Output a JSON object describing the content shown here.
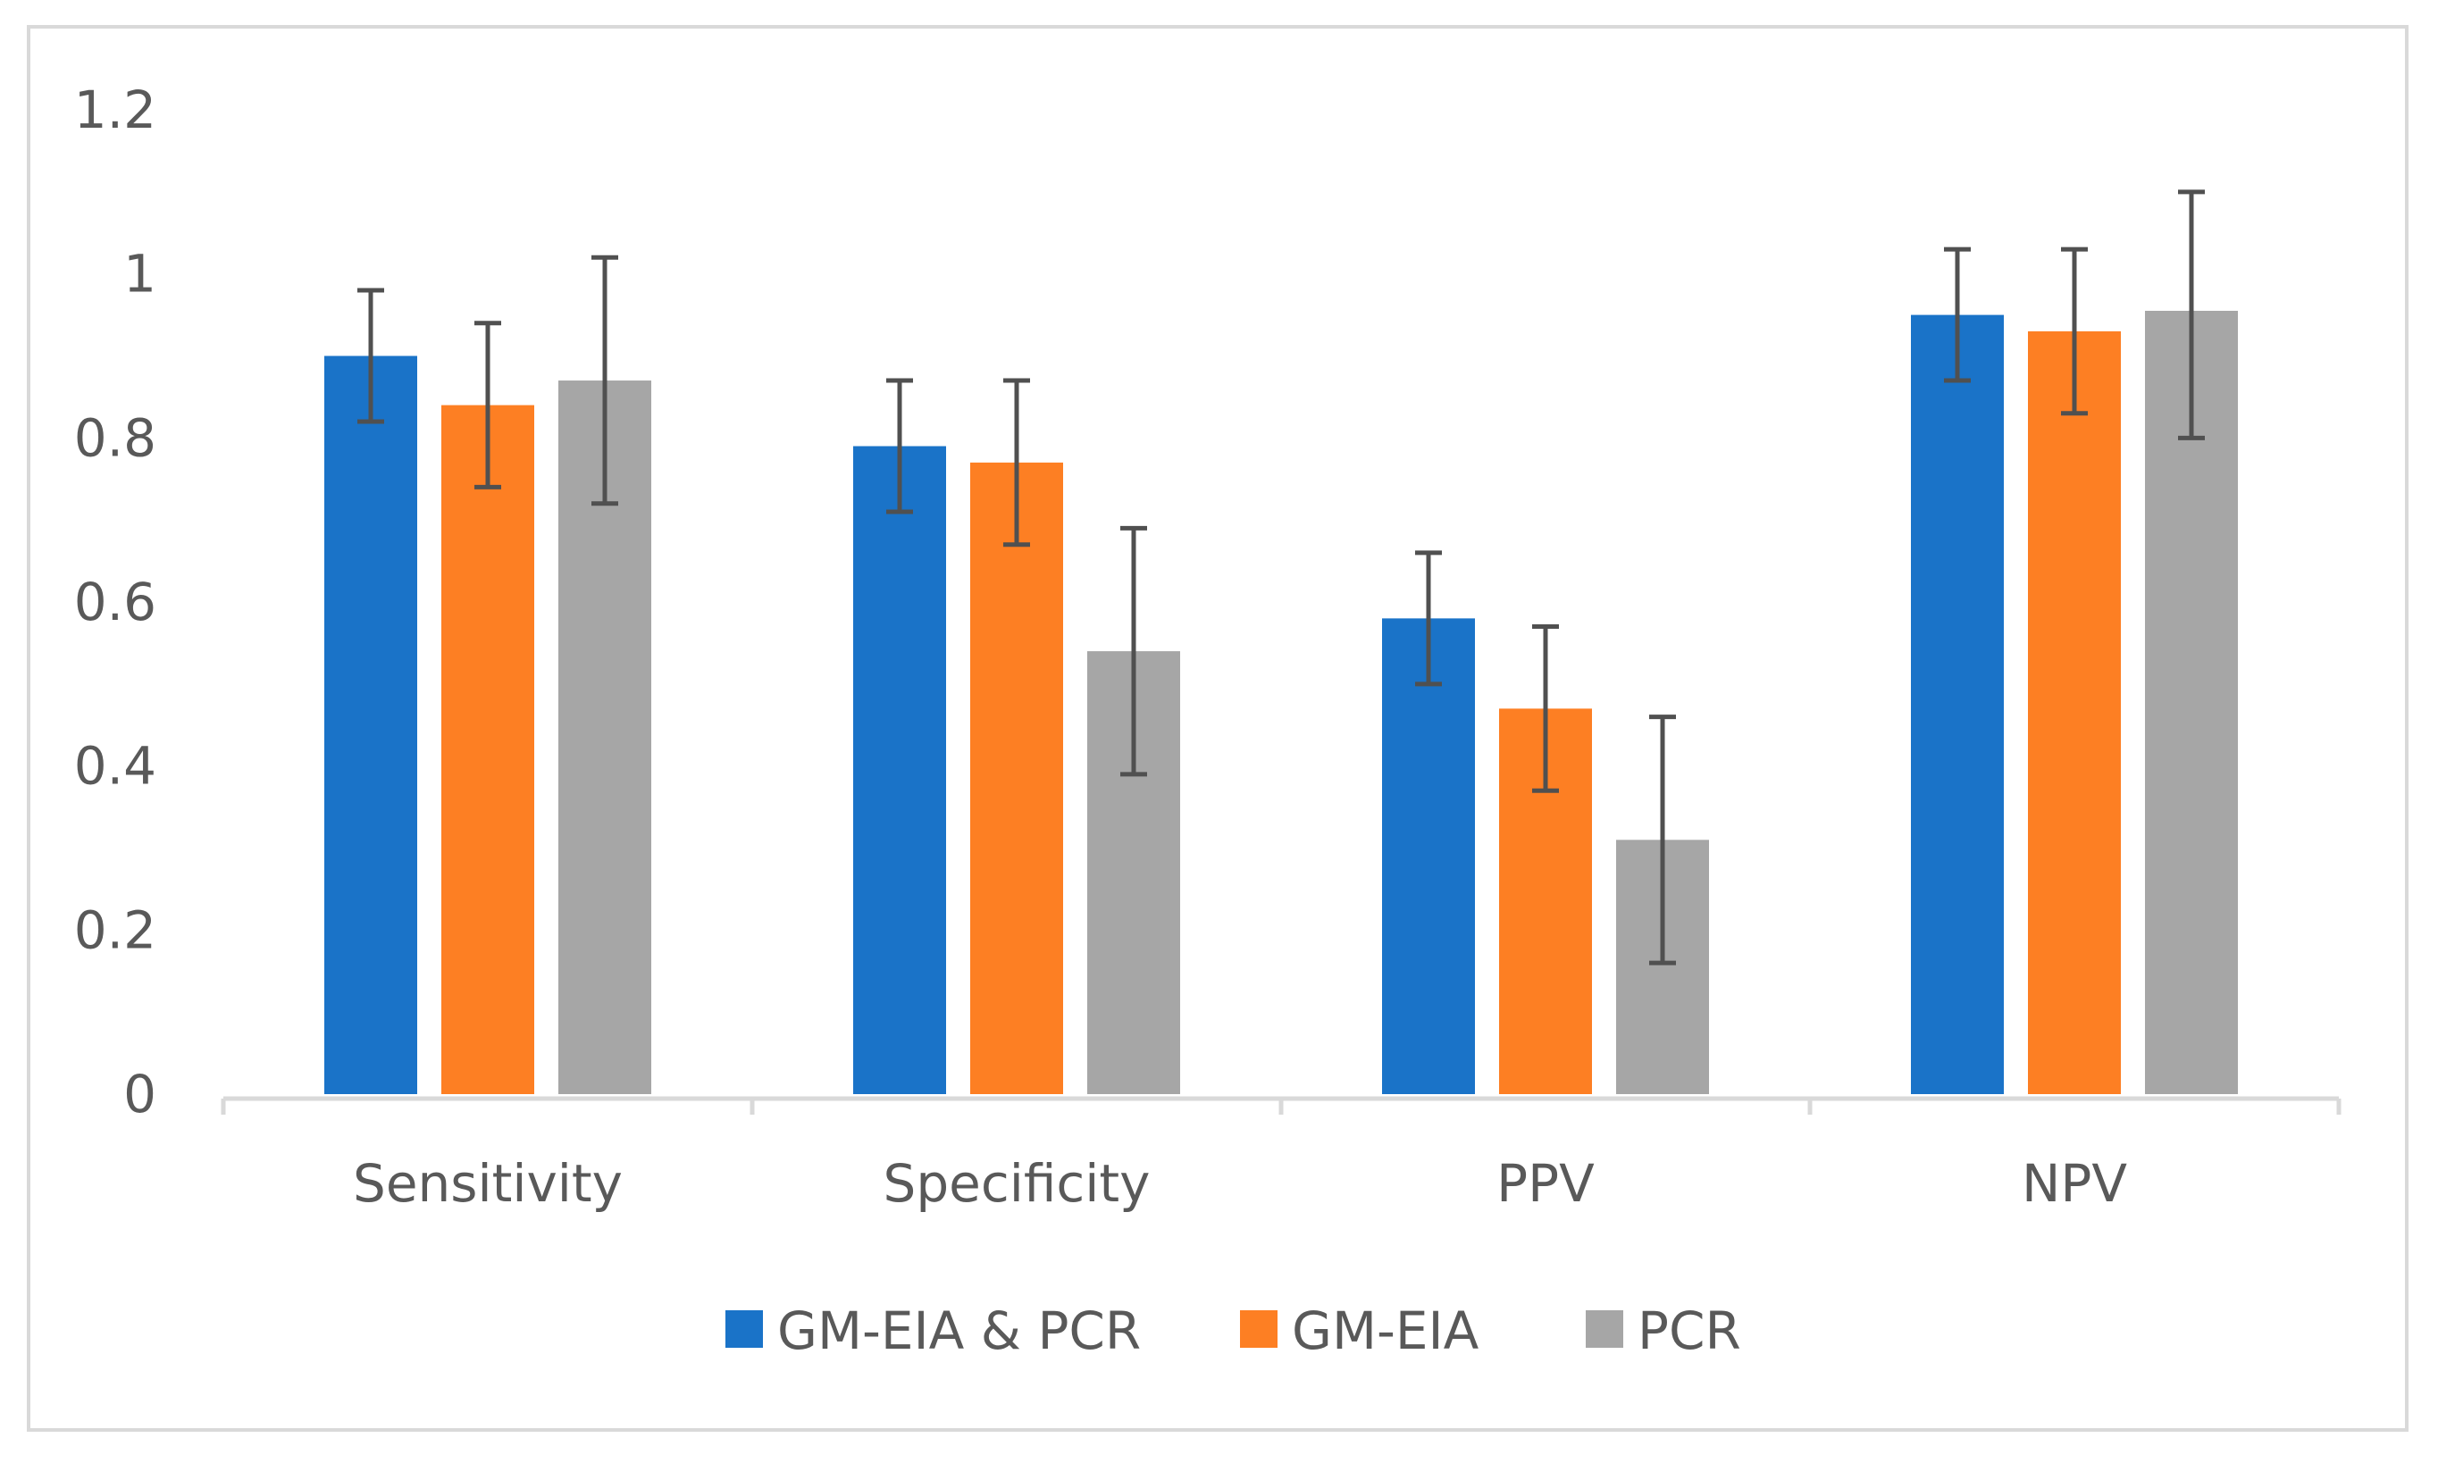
{
  "chart_data": {
    "type": "bar",
    "title": "",
    "xlabel": "",
    "ylabel": "",
    "categories": [
      "Sensitivity",
      "Specificity",
      "PPV",
      "NPV"
    ],
    "ylim": [
      0,
      1.2
    ],
    "yticks": [
      {
        "value": 0,
        "label": "0"
      },
      {
        "value": 0.2,
        "label": "0.2"
      },
      {
        "value": 0.4,
        "label": "0.4"
      },
      {
        "value": 0.6,
        "label": "0.6"
      },
      {
        "value": 0.8,
        "label": "0.8"
      },
      {
        "value": 1.0,
        "label": "1"
      },
      {
        "value": 1.2,
        "label": "1.2"
      }
    ],
    "grid": false,
    "legend_position": "bottom",
    "series": [
      {
        "name": "GM-EIA & PCR",
        "color": "#1a73c8",
        "values": [
          0.9,
          0.79,
          0.58,
          0.95
        ],
        "error_low": [
          0.82,
          0.71,
          0.5,
          0.87
        ],
        "error_high": [
          0.98,
          0.87,
          0.66,
          1.03
        ]
      },
      {
        "name": "GM-EIA",
        "color": "#fd7f23",
        "values": [
          0.84,
          0.77,
          0.47,
          0.93
        ],
        "error_low": [
          0.74,
          0.67,
          0.37,
          0.83
        ],
        "error_high": [
          0.94,
          0.87,
          0.57,
          1.03
        ]
      },
      {
        "name": "PCR",
        "color": "#a6a6a6",
        "values": [
          0.87,
          0.54,
          0.31,
          0.955
        ],
        "error_low": [
          0.72,
          0.39,
          0.16,
          0.8
        ],
        "error_high": [
          1.02,
          0.69,
          0.46,
          1.1
        ]
      }
    ],
    "errorbar_color": "#505050",
    "axis_color": "#d9d9d9"
  }
}
